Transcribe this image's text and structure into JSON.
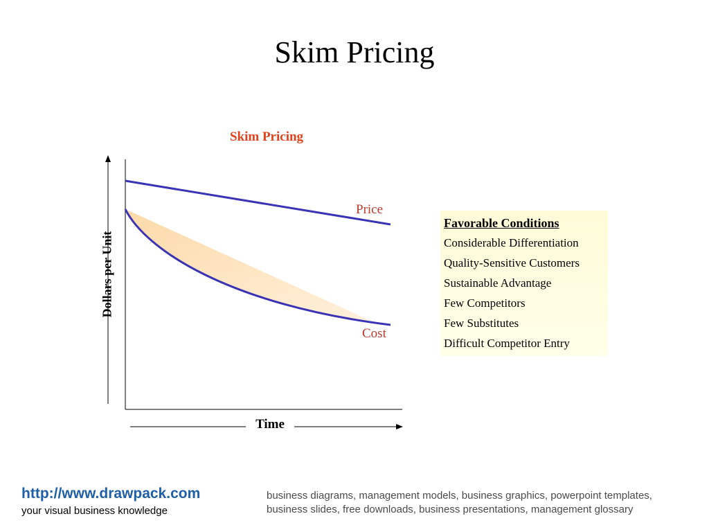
{
  "title": "Skim Pricing",
  "diagram": {
    "title": "Skim Pricing",
    "y_axis_label": "Dollars per Unit",
    "x_axis_label": "Time",
    "price_label": "Price",
    "cost_label": "Cost",
    "colors": {
      "curve": "#3a33b3",
      "margin_fill": "#fde2b8",
      "label_red": "#c0392b",
      "title_red": "#e2421b"
    }
  },
  "conditions": {
    "heading": "Favorable Conditions",
    "items": [
      "Considerable Differentiation",
      "Quality-Sensitive Customers",
      "Sustainable Advantage",
      "Few Competitors",
      "Few Substitutes",
      "Difficult Competitor Entry"
    ]
  },
  "footer": {
    "link": "http://www.drawpack.com",
    "tagline": "your visual business knowledge",
    "keywords": "business diagrams, management models, business graphics, powerpoint templates, business slides, free downloads, business presentations, management glossary"
  }
}
